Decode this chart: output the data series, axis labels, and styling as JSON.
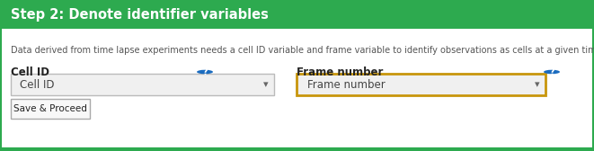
{
  "header_text": "Step 2: Denote identifier variables",
  "header_bg": "#2daa4f",
  "header_text_color": "#ffffff",
  "body_bg": "#ffffff",
  "outer_border_color": "#2daa4f",
  "bottom_border_color": "#2daa4f",
  "description": "Data derived from time lapse experiments needs a cell ID variable and frame variable to identify observations as cells at a given time point.",
  "desc_text_color": "#555555",
  "label_color": "#222222",
  "label1": "Cell ID",
  "label2": "Frame number",
  "dropdown1_text": "Cell ID",
  "dropdown2_text": "Frame number",
  "dropdown1_border": "#bbbbbb",
  "dropdown2_border": "#c8960c",
  "dropdown_bg": "#f0f0f0",
  "dropdown_text_color": "#444444",
  "button_text": "Save & Proceed",
  "button_bg": "#f8f8f8",
  "button_border": "#aaaaaa",
  "question_bg": "#1a6bbf",
  "question_text_color": "#ffffff",
  "header_fontsize": 10.5,
  "desc_fontsize": 7.0,
  "label_fontsize": 8.5,
  "dropdown_fontsize": 8.5,
  "button_fontsize": 7.5,
  "figw": 6.61,
  "figh": 1.68,
  "dpi": 100
}
